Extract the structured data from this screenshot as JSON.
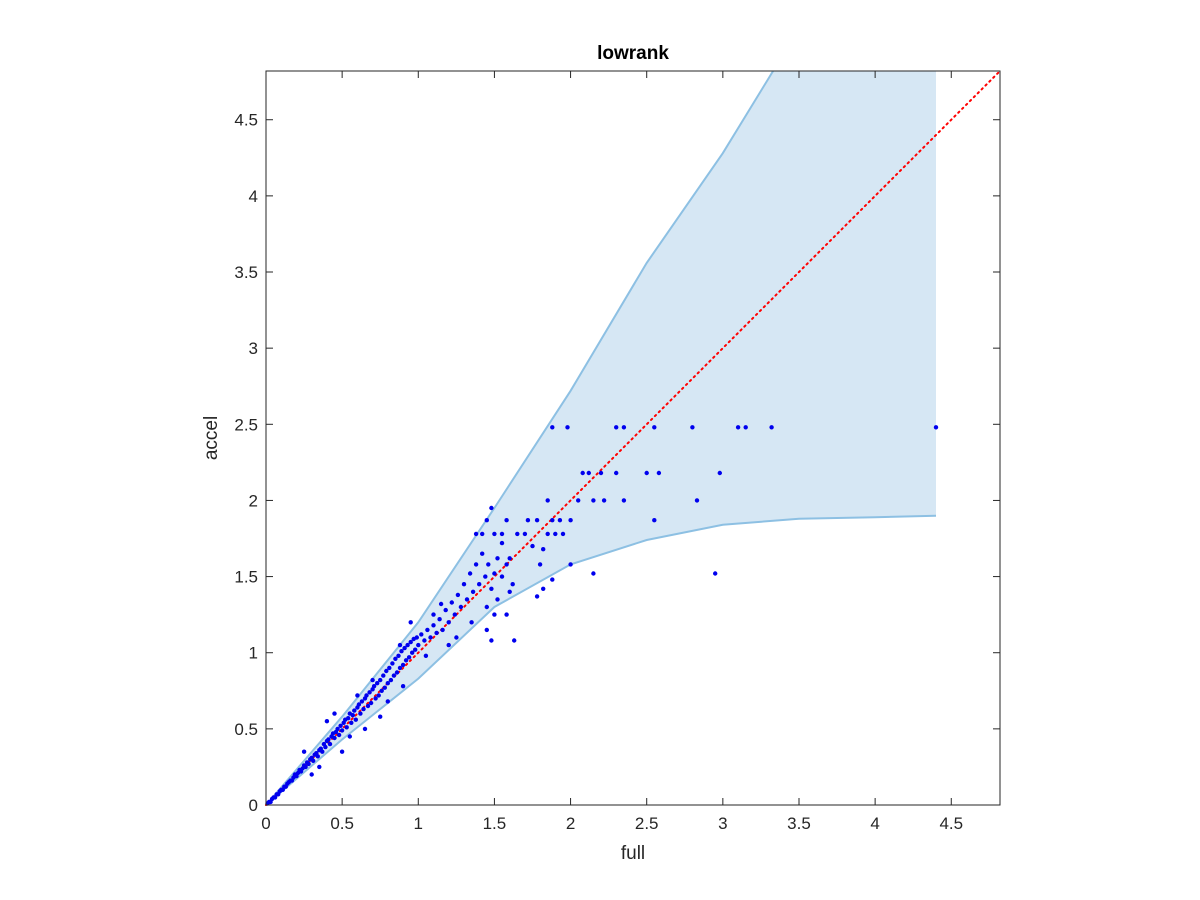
{
  "chart_data": {
    "type": "scatter",
    "title": "lowrank",
    "xlabel": "full",
    "ylabel": "accel",
    "xlim": [
      0,
      4.82
    ],
    "ylim": [
      0,
      4.82
    ],
    "xticks": [
      0,
      0.5,
      1,
      1.5,
      2,
      2.5,
      3,
      3.5,
      4,
      4.5
    ],
    "yticks": [
      0,
      0.5,
      1,
      1.5,
      2,
      2.5,
      3,
      3.5,
      4,
      4.5
    ],
    "xtick_labels": [
      "0",
      "0.5",
      "1",
      "1.5",
      "2",
      "2.5",
      "3",
      "3.5",
      "4",
      "4.5"
    ],
    "ytick_labels": [
      "0",
      "0.5",
      "1",
      "1.5",
      "2",
      "2.5",
      "3",
      "3.5",
      "4",
      "4.5"
    ],
    "grid": false,
    "band": {
      "color": "#d6e7f4",
      "edge_color": "#8dc0e3",
      "upper": [
        [
          0,
          0
        ],
        [
          0.5,
          0.58
        ],
        [
          1,
          1.2
        ],
        [
          1.5,
          1.95
        ],
        [
          2,
          2.72
        ],
        [
          2.5,
          3.56
        ],
        [
          3,
          4.28
        ],
        [
          3.33,
          4.82
        ],
        [
          4.4,
          4.82
        ]
      ],
      "lower": [
        [
          0,
          0
        ],
        [
          0.5,
          0.43
        ],
        [
          1,
          0.83
        ],
        [
          1.5,
          1.3
        ],
        [
          2,
          1.58
        ],
        [
          2.5,
          1.74
        ],
        [
          3,
          1.84
        ],
        [
          3.5,
          1.88
        ],
        [
          4,
          1.89
        ],
        [
          4.4,
          1.9
        ]
      ]
    },
    "reference_line": {
      "from": [
        0,
        0
      ],
      "to": [
        4.82,
        4.82
      ],
      "color": "#ff0000",
      "style": "dotted"
    },
    "series": [
      {
        "color": "#0000ee",
        "points": [
          [
            0.01,
            0.01
          ],
          [
            0.02,
            0.02
          ],
          [
            0.03,
            0.02
          ],
          [
            0.04,
            0.04
          ],
          [
            0.05,
            0.05
          ],
          [
            0.06,
            0.05
          ],
          [
            0.07,
            0.07
          ],
          [
            0.08,
            0.07
          ],
          [
            0.09,
            0.09
          ],
          [
            0.1,
            0.1
          ],
          [
            0.11,
            0.1
          ],
          [
            0.12,
            0.12
          ],
          [
            0.13,
            0.12
          ],
          [
            0.14,
            0.14
          ],
          [
            0.15,
            0.15
          ],
          [
            0.16,
            0.16
          ],
          [
            0.17,
            0.16
          ],
          [
            0.18,
            0.18
          ],
          [
            0.19,
            0.2
          ],
          [
            0.2,
            0.19
          ],
          [
            0.21,
            0.21
          ],
          [
            0.22,
            0.23
          ],
          [
            0.23,
            0.22
          ],
          [
            0.24,
            0.24
          ],
          [
            0.25,
            0.26
          ],
          [
            0.26,
            0.25
          ],
          [
            0.27,
            0.28
          ],
          [
            0.28,
            0.27
          ],
          [
            0.29,
            0.3
          ],
          [
            0.3,
            0.31
          ],
          [
            0.31,
            0.29
          ],
          [
            0.32,
            0.33
          ],
          [
            0.33,
            0.34
          ],
          [
            0.34,
            0.32
          ],
          [
            0.35,
            0.36
          ],
          [
            0.36,
            0.37
          ],
          [
            0.37,
            0.35
          ],
          [
            0.38,
            0.4
          ],
          [
            0.39,
            0.38
          ],
          [
            0.4,
            0.42
          ],
          [
            0.41,
            0.43
          ],
          [
            0.42,
            0.4
          ],
          [
            0.43,
            0.45
          ],
          [
            0.44,
            0.47
          ],
          [
            0.45,
            0.44
          ],
          [
            0.46,
            0.48
          ],
          [
            0.47,
            0.5
          ],
          [
            0.48,
            0.46
          ],
          [
            0.49,
            0.52
          ],
          [
            0.5,
            0.49
          ],
          [
            0.51,
            0.54
          ],
          [
            0.52,
            0.56
          ],
          [
            0.53,
            0.51
          ],
          [
            0.54,
            0.57
          ],
          [
            0.55,
            0.6
          ],
          [
            0.56,
            0.54
          ],
          [
            0.57,
            0.59
          ],
          [
            0.58,
            0.62
          ],
          [
            0.59,
            0.56
          ],
          [
            0.6,
            0.64
          ],
          [
            0.61,
            0.66
          ],
          [
            0.62,
            0.6
          ],
          [
            0.63,
            0.68
          ],
          [
            0.64,
            0.63
          ],
          [
            0.65,
            0.7
          ],
          [
            0.66,
            0.72
          ],
          [
            0.67,
            0.65
          ],
          [
            0.68,
            0.74
          ],
          [
            0.69,
            0.67
          ],
          [
            0.7,
            0.76
          ],
          [
            0.71,
            0.78
          ],
          [
            0.72,
            0.7
          ],
          [
            0.73,
            0.8
          ],
          [
            0.74,
            0.72
          ],
          [
            0.75,
            0.82
          ],
          [
            0.76,
            0.75
          ],
          [
            0.77,
            0.85
          ],
          [
            0.78,
            0.77
          ],
          [
            0.79,
            0.88
          ],
          [
            0.8,
            0.8
          ],
          [
            0.81,
            0.9
          ],
          [
            0.82,
            0.82
          ],
          [
            0.83,
            0.93
          ],
          [
            0.84,
            0.85
          ],
          [
            0.85,
            0.96
          ],
          [
            0.86,
            0.87
          ],
          [
            0.87,
            0.98
          ],
          [
            0.88,
            0.9
          ],
          [
            0.89,
            1.01
          ],
          [
            0.9,
            0.92
          ],
          [
            0.91,
            1.03
          ],
          [
            0.92,
            0.95
          ],
          [
            0.93,
            1.05
          ],
          [
            0.94,
            0.97
          ],
          [
            0.95,
            1.07
          ],
          [
            0.96,
            1.0
          ],
          [
            0.97,
            1.09
          ],
          [
            0.98,
            1.02
          ],
          [
            0.99,
            1.1
          ],
          [
            1.0,
            1.05
          ],
          [
            1.02,
            1.12
          ],
          [
            1.04,
            1.08
          ],
          [
            1.06,
            1.15
          ],
          [
            1.08,
            1.1
          ],
          [
            1.1,
            1.18
          ],
          [
            1.12,
            1.13
          ],
          [
            1.14,
            1.22
          ],
          [
            1.16,
            1.15
          ],
          [
            1.18,
            1.28
          ],
          [
            1.2,
            1.2
          ],
          [
            1.22,
            1.33
          ],
          [
            1.24,
            1.25
          ],
          [
            1.26,
            1.38
          ],
          [
            1.28,
            1.3
          ],
          [
            1.3,
            1.45
          ],
          [
            1.32,
            1.35
          ],
          [
            1.34,
            1.52
          ],
          [
            1.36,
            1.4
          ],
          [
            1.38,
            1.58
          ],
          [
            1.4,
            1.45
          ],
          [
            1.42,
            1.65
          ],
          [
            1.44,
            1.5
          ],
          [
            1.46,
            1.58
          ],
          [
            1.48,
            1.42
          ],
          [
            1.5,
            1.52
          ],
          [
            1.52,
            1.62
          ],
          [
            1.55,
            1.72
          ],
          [
            1.58,
            1.58
          ],
          [
            1.6,
            1.4
          ],
          [
            1.63,
            1.08
          ],
          [
            0.3,
            0.2
          ],
          [
            0.45,
            0.6
          ],
          [
            0.55,
            0.45
          ],
          [
            0.65,
            0.5
          ],
          [
            0.7,
            0.82
          ],
          [
            0.8,
            0.68
          ],
          [
            0.9,
            0.78
          ],
          [
            0.95,
            1.2
          ],
          [
            1.05,
            0.98
          ],
          [
            1.15,
            1.32
          ],
          [
            1.25,
            1.1
          ],
          [
            1.35,
            1.2
          ],
          [
            1.45,
            1.3
          ],
          [
            1.45,
            1.15
          ],
          [
            1.5,
            1.25
          ],
          [
            1.38,
            1.78
          ],
          [
            1.42,
            1.78
          ],
          [
            1.45,
            1.87
          ],
          [
            1.5,
            1.78
          ],
          [
            1.55,
            1.78
          ],
          [
            1.48,
            1.95
          ],
          [
            1.2,
            1.05
          ],
          [
            1.1,
            1.25
          ],
          [
            0.88,
            1.05
          ],
          [
            0.75,
            0.58
          ],
          [
            0.6,
            0.72
          ],
          [
            0.5,
            0.35
          ],
          [
            0.4,
            0.55
          ],
          [
            0.35,
            0.25
          ],
          [
            0.25,
            0.35
          ],
          [
            1.58,
            1.25
          ],
          [
            1.48,
            1.08
          ],
          [
            1.52,
            1.35
          ],
          [
            1.62,
            1.45
          ],
          [
            1.6,
            1.62
          ],
          [
            1.55,
            1.5
          ],
          [
            1.58,
            1.87
          ],
          [
            1.65,
            1.78
          ],
          [
            1.7,
            1.78
          ],
          [
            1.72,
            1.87
          ],
          [
            1.75,
            1.7
          ],
          [
            1.78,
            1.87
          ],
          [
            1.8,
            1.58
          ],
          [
            1.82,
            1.68
          ],
          [
            1.78,
            1.37
          ],
          [
            1.82,
            1.42
          ],
          [
            1.85,
            1.78
          ],
          [
            1.88,
            1.87
          ],
          [
            1.9,
            1.78
          ],
          [
            1.85,
            2.0
          ],
          [
            1.88,
            1.48
          ],
          [
            1.93,
            1.87
          ],
          [
            1.95,
            1.78
          ],
          [
            2.0,
            1.58
          ],
          [
            2.0,
            1.87
          ],
          [
            2.05,
            2.0
          ],
          [
            2.08,
            2.18
          ],
          [
            2.12,
            2.18
          ],
          [
            2.15,
            2.0
          ],
          [
            2.15,
            1.52
          ],
          [
            2.2,
            2.18
          ],
          [
            2.22,
            2.0
          ],
          [
            2.3,
            2.18
          ],
          [
            2.35,
            2.0
          ],
          [
            2.5,
            2.18
          ],
          [
            2.55,
            1.87
          ],
          [
            2.58,
            2.18
          ],
          [
            2.83,
            2.0
          ],
          [
            2.95,
            1.52
          ],
          [
            2.98,
            2.18
          ],
          [
            1.88,
            2.48
          ],
          [
            1.98,
            2.48
          ],
          [
            2.3,
            2.48
          ],
          [
            2.35,
            2.48
          ],
          [
            2.55,
            2.48
          ],
          [
            2.8,
            2.48
          ],
          [
            3.1,
            2.48
          ],
          [
            3.15,
            2.48
          ],
          [
            3.32,
            2.48
          ],
          [
            4.4,
            2.48
          ]
        ]
      }
    ]
  }
}
